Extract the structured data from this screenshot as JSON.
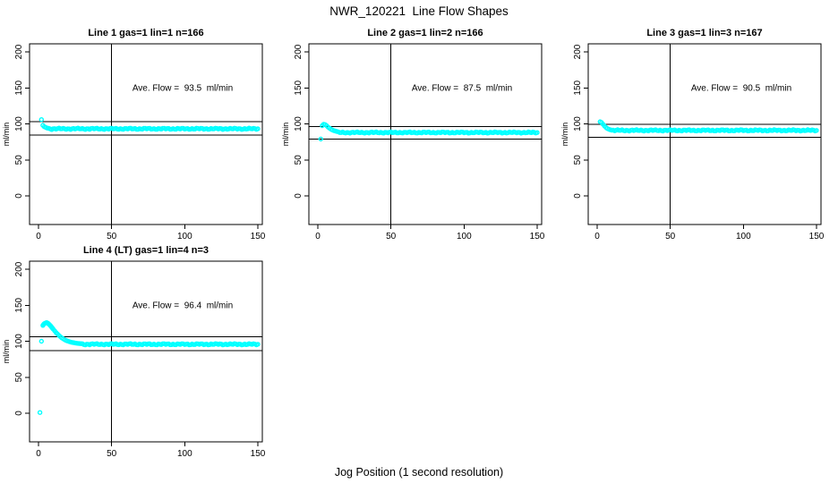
{
  "title": "NWR_120221  Line Flow Shapes",
  "xlabel": "Jog Position (1 second resolution)",
  "colors": {
    "points": "#00FFFF",
    "axis": "#000000",
    "background": "#FFFFFF"
  },
  "chart_data": [
    {
      "type": "scatter",
      "title": "Line 1 gas=1 lin=1 n=166",
      "annotation": "Ave. Flow =  93.5  ml/min",
      "ave_flow_ml_min": 93.5,
      "ylabel": "ml/min",
      "xticks": [
        0,
        50,
        100,
        150
      ],
      "yticks": [
        0,
        50,
        100,
        150,
        200
      ],
      "xlim": [
        -6,
        153
      ],
      "ylim": [
        -40,
        211
      ],
      "vline_x": 50,
      "hlines": [
        102.9,
        84.2
      ],
      "head_points": [
        [
          2,
          106
        ],
        [
          3,
          98
        ],
        [
          4,
          96
        ],
        [
          5,
          95
        ],
        [
          6,
          94.2
        ],
        [
          7,
          93.8
        ]
      ],
      "tail": {
        "from": 8,
        "to": 150,
        "step": 1,
        "value": 93.2,
        "jitter": 1.1
      }
    },
    {
      "type": "scatter",
      "title": "Line 2 gas=1 lin=2 n=166",
      "annotation": "Ave. Flow =  87.5  ml/min",
      "ave_flow_ml_min": 87.5,
      "ylabel": "ml/min",
      "xticks": [
        0,
        50,
        100,
        150
      ],
      "yticks": [
        0,
        50,
        100,
        150,
        200
      ],
      "xlim": [
        -6,
        153
      ],
      "ylim": [
        -40,
        211
      ],
      "vline_x": 50,
      "hlines": [
        96.3,
        78.8
      ],
      "head_points": [
        [
          2,
          79
        ],
        [
          3,
          97.5
        ],
        [
          4,
          99.5
        ],
        [
          5,
          99
        ],
        [
          6,
          97.5
        ],
        [
          7,
          95.5
        ],
        [
          8,
          94
        ],
        [
          9,
          92.5
        ],
        [
          10,
          91.5
        ],
        [
          11,
          90.5
        ],
        [
          12,
          90
        ],
        [
          13,
          89.5
        ],
        [
          14,
          89
        ]
      ],
      "tail": {
        "from": 15,
        "to": 150,
        "step": 1,
        "value": 88,
        "jitter": 1.0
      }
    },
    {
      "type": "scatter",
      "title": "Line 3 gas=1 lin=3 n=167",
      "annotation": "Ave. Flow =  90.5  ml/min",
      "ave_flow_ml_min": 90.5,
      "ylabel": "ml/min",
      "xticks": [
        0,
        50,
        100,
        150
      ],
      "yticks": [
        0,
        50,
        100,
        150,
        200
      ],
      "xlim": [
        -6,
        153
      ],
      "ylim": [
        -40,
        211
      ],
      "vline_x": 50,
      "hlines": [
        99.6,
        81.5
      ],
      "head_points": [
        [
          2,
          103
        ],
        [
          3,
          102
        ],
        [
          4,
          99.5
        ],
        [
          5,
          97
        ],
        [
          6,
          95
        ],
        [
          7,
          93.5
        ],
        [
          8,
          92.5
        ],
        [
          9,
          91.8
        ],
        [
          10,
          91.3
        ]
      ],
      "tail": {
        "from": 11,
        "to": 150,
        "step": 1,
        "value": 91,
        "jitter": 1.1
      }
    },
    {
      "type": "scatter",
      "title": "Line 4 (LT) gas=1 lin=4 n=3",
      "annotation": "Ave. Flow =  96.4  ml/min",
      "ave_flow_ml_min": 96.4,
      "ylabel": "ml/min",
      "xticks": [
        0,
        50,
        100,
        150
      ],
      "yticks": [
        0,
        50,
        100,
        150,
        200
      ],
      "xlim": [
        -6,
        153
      ],
      "ylim": [
        -40,
        211
      ],
      "vline_x": 50,
      "hlines": [
        106.0,
        86.8
      ],
      "head_points": [
        [
          1,
          1
        ],
        [
          2,
          100
        ],
        [
          3,
          122
        ],
        [
          3.5,
          123.5
        ],
        [
          4,
          124.5
        ],
        [
          4.5,
          125
        ],
        [
          5,
          125.5
        ],
        [
          5.5,
          125.8
        ],
        [
          6,
          125.5
        ],
        [
          6.5,
          125
        ],
        [
          7,
          124
        ],
        [
          7.5,
          123
        ],
        [
          8,
          122
        ],
        [
          8.5,
          120.8
        ],
        [
          9,
          119.5
        ],
        [
          9.5,
          118.2
        ],
        [
          10,
          117
        ],
        [
          11,
          114.5
        ],
        [
          12,
          112
        ],
        [
          13,
          110
        ],
        [
          14,
          108
        ],
        [
          15,
          106.2
        ],
        [
          16,
          104.6
        ],
        [
          17,
          103.2
        ],
        [
          18,
          102
        ],
        [
          19,
          101
        ],
        [
          20,
          100.2
        ],
        [
          21,
          99.5
        ],
        [
          22,
          98.9
        ],
        [
          23,
          98.4
        ],
        [
          24,
          98
        ],
        [
          25,
          97.6
        ],
        [
          26,
          97.3
        ],
        [
          27,
          97
        ],
        [
          28,
          96.8
        ],
        [
          29,
          96.6
        ],
        [
          30,
          96.5
        ]
      ],
      "tail": {
        "from": 31,
        "to": 150,
        "step": 1,
        "value": 95.8,
        "jitter": 1.1
      }
    }
  ]
}
